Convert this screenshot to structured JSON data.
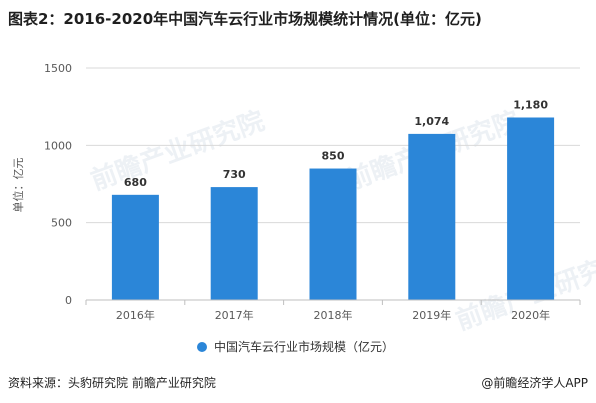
{
  "title": "图表2：2016-2020年中国汽车云行业市场规模统计情况(单位：亿元)",
  "watermark": "前瞻产业研究院",
  "source": "资料来源：头豹研究院 前瞻产业研究院",
  "copyright": "@前瞻经济学人APP",
  "chart_data": {
    "type": "bar",
    "categories": [
      "2016年",
      "2017年",
      "2018年",
      "2019年",
      "2020年"
    ],
    "series": [
      {
        "name": "中国汽车云行业市场规模（亿元）",
        "values": [
          680,
          730,
          850,
          1074,
          1180
        ],
        "labels": [
          "680",
          "730",
          "850",
          "1,074",
          "1,180"
        ]
      }
    ],
    "ylabel": "单位：亿元",
    "ylim": [
      0,
      1500
    ],
    "yticks": [
      0,
      500,
      1000,
      1500
    ],
    "grid": true,
    "legend": "bottom",
    "colors": {
      "bar": "#2b86d8",
      "grid": "#d9d9d9",
      "axis": "#bfbfbf",
      "text": "#595959"
    }
  }
}
